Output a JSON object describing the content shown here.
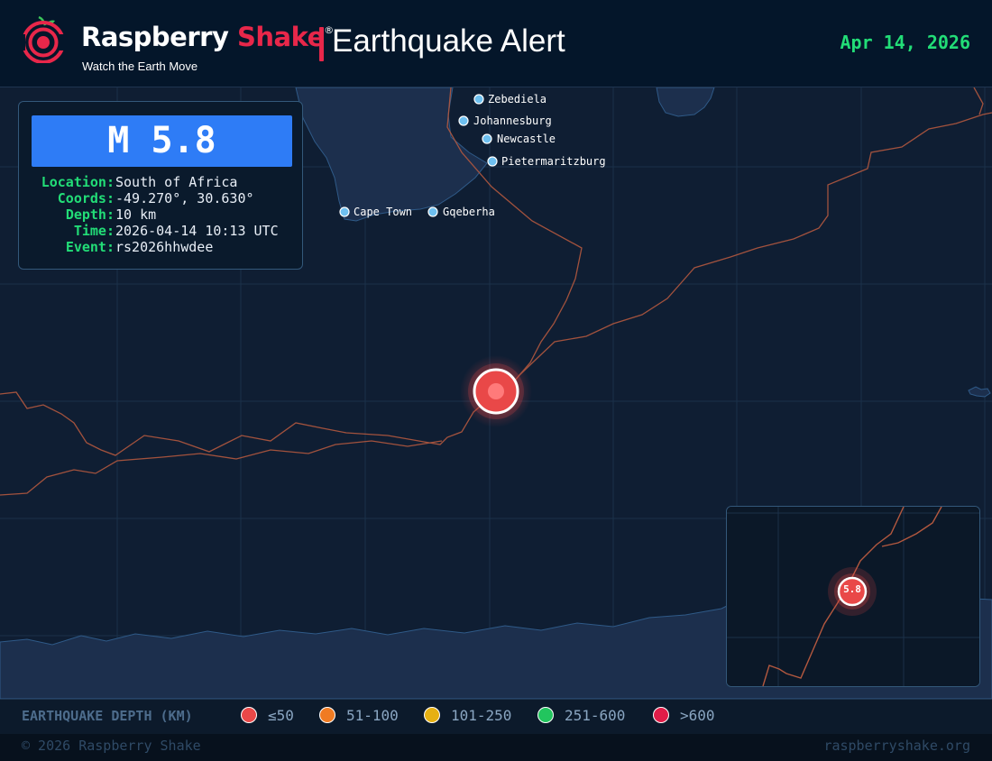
{
  "header": {
    "brand_white": "Raspberry",
    "brand_red": "Shake",
    "registered_mark": "®",
    "tagline": "Watch the Earth Move",
    "title": "Earthquake Alert",
    "date": "Apr 14, 2026"
  },
  "event": {
    "magnitude_label": "M 5.8",
    "fields": [
      {
        "label": "Location:",
        "value": "South of Africa"
      },
      {
        "label": "Coords:",
        "value": "-49.270°, 30.630°"
      },
      {
        "label": "Depth:",
        "value": "10 km"
      },
      {
        "label": "Time:",
        "value": "2026-04-14 10:13 UTC"
      },
      {
        "label": "Event:",
        "value": "rs2026hhwdee"
      }
    ],
    "depth_color": "#e94848"
  },
  "map": {
    "cities": [
      {
        "name": "Zebediela"
      },
      {
        "name": "Johannesburg"
      },
      {
        "name": "Newcastle"
      },
      {
        "name": "Pietermaritzburg"
      },
      {
        "name": "Cape Town"
      },
      {
        "name": "Gqeberha"
      }
    ],
    "inset_magnitude": "5.8"
  },
  "legend": {
    "title": "EARTHQUAKE DEPTH (KM)",
    "items": [
      {
        "label": "≤50",
        "color": "#e94848"
      },
      {
        "label": "51-100",
        "color": "#f07b22"
      },
      {
        "label": "101-250",
        "color": "#e6b012"
      },
      {
        "label": "251-600",
        "color": "#22c55e"
      },
      {
        "label": ">600",
        "color": "#e11d48"
      }
    ]
  },
  "footer": {
    "copyright": "© 2026 Raspberry Shake",
    "website": "raspberryshake.org"
  },
  "colors": {
    "accent_green": "#22dd77",
    "brand_red": "#e8274a",
    "banner_blue": "#2e7cf6",
    "ocean": "#0f1e33",
    "land": "#1c2f4d",
    "plate_boundary": "#b3583f"
  }
}
